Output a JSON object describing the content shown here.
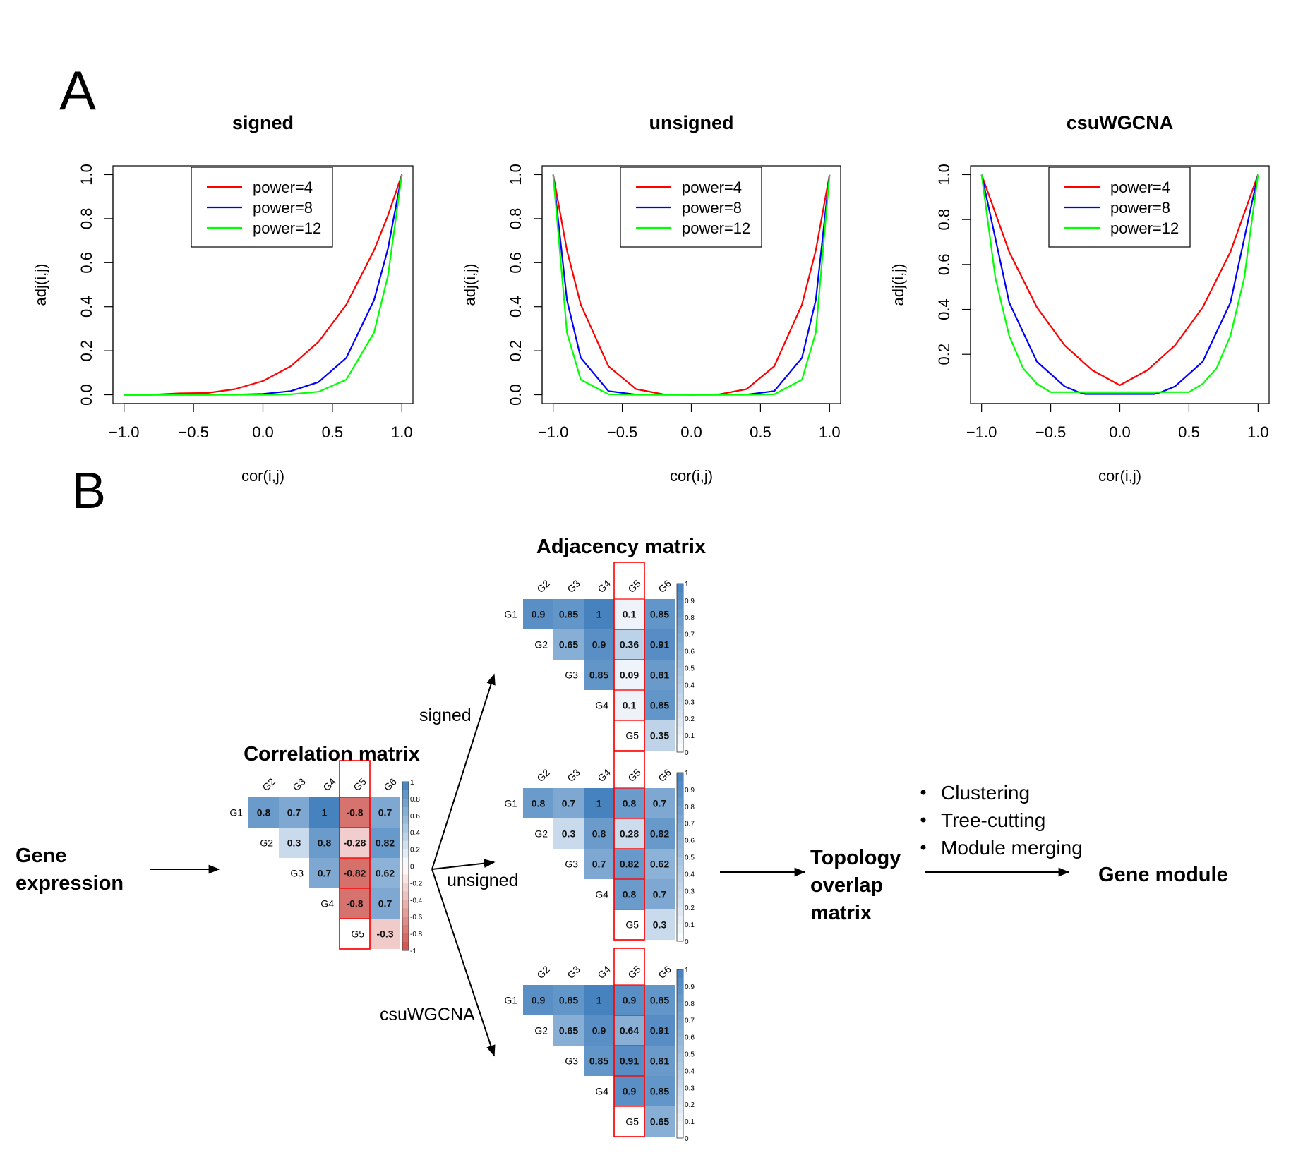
{
  "panel_labels": {
    "a": "A",
    "b": "B"
  },
  "colors": {
    "power4": "#ff0000",
    "power8": "#0000ff",
    "power12": "#00ff00",
    "positive": "#2166ac",
    "negative": "#b2182b",
    "highlight": "#ff0000"
  },
  "chart_data": [
    {
      "type": "line",
      "title": "signed",
      "xlabel": "cor(i,j)",
      "ylabel": "adj(i,j)",
      "xlim": [
        -1.0,
        1.0
      ],
      "ylim": [
        0.0,
        1.0
      ],
      "xticks": [
        "-1.0",
        "-0.5",
        "0.0",
        "0.5",
        "1.0"
      ],
      "yticks": [
        "0.0",
        "0.2",
        "0.4",
        "0.6",
        "0.8",
        "1.0"
      ],
      "grid": false,
      "legend_position": "top-center",
      "series": [
        {
          "name": "power=4",
          "x": [
            -1.0,
            -0.8,
            -0.6,
            -0.4,
            -0.2,
            0.0,
            0.2,
            0.4,
            0.6,
            0.8,
            0.9,
            1.0
          ],
          "y": [
            0.0,
            0.0002,
            0.0066,
            0.0081,
            0.0256,
            0.0625,
            0.1296,
            0.2401,
            0.4096,
            0.6561,
            0.8145,
            1.0
          ]
        },
        {
          "name": "power=8",
          "x": [
            -1.0,
            -0.8,
            -0.6,
            -0.4,
            -0.2,
            0.0,
            0.2,
            0.4,
            0.6,
            0.8,
            0.9,
            1.0
          ],
          "y": [
            0.0,
            0.0,
            0.0,
            0.0001,
            0.0007,
            0.0039,
            0.0168,
            0.0576,
            0.1678,
            0.4305,
            0.6634,
            1.0
          ]
        },
        {
          "name": "power=12",
          "x": [
            -1.0,
            -0.8,
            -0.6,
            -0.4,
            -0.2,
            0.0,
            0.2,
            0.4,
            0.6,
            0.8,
            0.9,
            1.0
          ],
          "y": [
            0.0,
            0.0,
            0.0,
            0.0,
            0.0,
            0.0002,
            0.0022,
            0.0138,
            0.0687,
            0.2824,
            0.5404,
            1.0
          ]
        }
      ]
    },
    {
      "type": "line",
      "title": "unsigned",
      "xlabel": "cor(i,j)",
      "ylabel": "adj(i,j)",
      "xlim": [
        -1.0,
        1.0
      ],
      "ylim": [
        0.0,
        1.0
      ],
      "xticks": [
        "-1.0",
        "-0.5",
        "0.0",
        "0.5",
        "1.0"
      ],
      "yticks": [
        "0.0",
        "0.2",
        "0.4",
        "0.6",
        "0.8",
        "1.0"
      ],
      "grid": false,
      "legend_position": "top-center",
      "series": [
        {
          "name": "power=4",
          "x": [
            -1.0,
            -0.9,
            -0.8,
            -0.6,
            -0.4,
            -0.2,
            0.0,
            0.2,
            0.4,
            0.6,
            0.8,
            0.9,
            1.0
          ],
          "y": [
            1.0,
            0.6561,
            0.4096,
            0.1296,
            0.0256,
            0.0016,
            0.0,
            0.0016,
            0.0256,
            0.1296,
            0.4096,
            0.6561,
            1.0
          ]
        },
        {
          "name": "power=8",
          "x": [
            -1.0,
            -0.9,
            -0.8,
            -0.6,
            -0.4,
            -0.2,
            0.0,
            0.2,
            0.4,
            0.6,
            0.8,
            0.9,
            1.0
          ],
          "y": [
            1.0,
            0.4305,
            0.1678,
            0.0168,
            0.0007,
            0.0,
            0.0,
            0.0,
            0.0007,
            0.0168,
            0.1678,
            0.4305,
            1.0
          ]
        },
        {
          "name": "power=12",
          "x": [
            -1.0,
            -0.9,
            -0.8,
            -0.6,
            -0.4,
            -0.2,
            0.0,
            0.2,
            0.4,
            0.6,
            0.8,
            0.9,
            1.0
          ],
          "y": [
            1.0,
            0.2824,
            0.0687,
            0.0022,
            0.0,
            0.0,
            0.0,
            0.0,
            0.0,
            0.0022,
            0.0687,
            0.2824,
            1.0
          ]
        }
      ]
    },
    {
      "type": "line",
      "title": "csuWGCNA",
      "xlabel": "cor(i,j)",
      "ylabel": "adj(i,j)",
      "xlim": [
        -1.0,
        1.0
      ],
      "ylim": [
        0.02,
        1.0
      ],
      "xticks": [
        "-1.0",
        "-0.5",
        "0.0",
        "0.5",
        "1.0"
      ],
      "yticks": [
        "0.2",
        "0.4",
        "0.6",
        "0.8",
        "1.0"
      ],
      "grid": false,
      "legend_position": "top-center",
      "series": [
        {
          "name": "power=4",
          "x": [
            -1.0,
            -0.8,
            -0.6,
            -0.4,
            -0.2,
            0.0,
            0.2,
            0.4,
            0.6,
            0.8,
            1.0
          ],
          "y": [
            1.0,
            0.6561,
            0.4096,
            0.2401,
            0.1296,
            0.0625,
            0.1296,
            0.2401,
            0.4096,
            0.6561,
            1.0
          ]
        },
        {
          "name": "power=8",
          "x": [
            -1.0,
            -0.8,
            -0.6,
            -0.4,
            -0.3,
            -0.25,
            0.25,
            0.3,
            0.4,
            0.6,
            0.8,
            1.0
          ],
          "y": [
            1.0,
            0.4305,
            0.1678,
            0.0576,
            0.0319,
            0.0232,
            0.0232,
            0.0319,
            0.0576,
            0.1678,
            0.4305,
            1.0
          ]
        },
        {
          "name": "power=12",
          "x": [
            -1.0,
            -0.9,
            -0.8,
            -0.7,
            -0.6,
            -0.5,
            0.5,
            0.6,
            0.7,
            0.8,
            0.9,
            1.0
          ],
          "y": [
            1.0,
            0.5404,
            0.2824,
            0.1384,
            0.0687,
            0.0317,
            0.0317,
            0.0687,
            0.1384,
            0.2824,
            0.5404,
            1.0
          ]
        }
      ]
    },
    {
      "type": "heatmap",
      "title": "Correlation matrix",
      "rows": [
        "G1",
        "G2",
        "G3",
        "G4",
        "G5"
      ],
      "cols": [
        "G2",
        "G3",
        "G4",
        "G5",
        "G6"
      ],
      "values": [
        [
          0.8,
          0.7,
          1,
          -0.8,
          0.7
        ],
        [
          null,
          0.3,
          0.8,
          -0.28,
          0.82
        ],
        [
          null,
          null,
          0.7,
          -0.82,
          0.62
        ],
        [
          null,
          null,
          null,
          -0.8,
          0.7
        ],
        [
          null,
          null,
          null,
          null,
          -0.3
        ]
      ],
      "labels": [
        [
          "0.8",
          "0.7",
          "1",
          "-0.8",
          "0.7"
        ],
        [
          "",
          "0.3",
          "0.8",
          "-0.28",
          "0.82"
        ],
        [
          "",
          "",
          "0.7",
          "-0.82",
          "0.62"
        ],
        [
          "",
          "",
          "",
          "-0.8",
          "0.7"
        ],
        [
          "",
          "",
          "",
          "",
          "-0.3"
        ]
      ],
      "colorbar_ticks": [
        "1",
        "0.8",
        "0.6",
        "0.4",
        "0.2",
        "0",
        "-0.2",
        "-0.4",
        "-0.6",
        "-0.8",
        "-1"
      ],
      "scale_range": [
        -1,
        1
      ],
      "highlighted_column": "G5"
    },
    {
      "type": "heatmap",
      "title": "Adjacency matrix",
      "method": "signed",
      "rows": [
        "G1",
        "G2",
        "G3",
        "G4",
        "G5"
      ],
      "cols": [
        "G2",
        "G3",
        "G4",
        "G5",
        "G6"
      ],
      "values": [
        [
          0.9,
          0.85,
          1,
          0.1,
          0.85
        ],
        [
          null,
          0.65,
          0.9,
          0.36,
          0.91
        ],
        [
          null,
          null,
          0.85,
          0.09,
          0.81
        ],
        [
          null,
          null,
          null,
          0.1,
          0.85
        ],
        [
          null,
          null,
          null,
          null,
          0.35
        ]
      ],
      "labels": [
        [
          "0.9",
          "0.85",
          "1",
          "0.1",
          "0.85"
        ],
        [
          "",
          "0.65",
          "0.9",
          "0.36",
          "0.91"
        ],
        [
          "",
          "",
          "0.85",
          "0.09",
          "0.81"
        ],
        [
          "",
          "",
          "",
          "0.1",
          "0.85"
        ],
        [
          "",
          "",
          "",
          "",
          "0.35"
        ]
      ],
      "colorbar_ticks": [
        "1",
        "0.9",
        "0.8",
        "0.7",
        "0.6",
        "0.5",
        "0.4",
        "0.3",
        "0.2",
        "0.1",
        "0"
      ],
      "scale_range": [
        0,
        1
      ],
      "highlighted_column": "G5"
    },
    {
      "type": "heatmap",
      "title": "",
      "method": "unsigned",
      "rows": [
        "G1",
        "G2",
        "G3",
        "G4",
        "G5"
      ],
      "cols": [
        "G2",
        "G3",
        "G4",
        "G5",
        "G6"
      ],
      "values": [
        [
          0.8,
          0.7,
          1,
          0.8,
          0.7
        ],
        [
          null,
          0.3,
          0.8,
          0.28,
          0.82
        ],
        [
          null,
          null,
          0.7,
          0.82,
          0.62
        ],
        [
          null,
          null,
          null,
          0.8,
          0.7
        ],
        [
          null,
          null,
          null,
          null,
          0.3
        ]
      ],
      "labels": [
        [
          "0.8",
          "0.7",
          "1",
          "0.8",
          "0.7"
        ],
        [
          "",
          "0.3",
          "0.8",
          "0.28",
          "0.82"
        ],
        [
          "",
          "",
          "0.7",
          "0.82",
          "0.62"
        ],
        [
          "",
          "",
          "",
          "0.8",
          "0.7"
        ],
        [
          "",
          "",
          "",
          "",
          "0.3"
        ]
      ],
      "colorbar_ticks": [
        "1",
        "0.9",
        "0.8",
        "0.7",
        "0.6",
        "0.5",
        "0.4",
        "0.3",
        "0.2",
        "0.1",
        "0"
      ],
      "scale_range": [
        0,
        1
      ],
      "highlighted_column": "G5"
    },
    {
      "type": "heatmap",
      "title": "",
      "method": "csuWGCNA",
      "rows": [
        "G1",
        "G2",
        "G3",
        "G4",
        "G5"
      ],
      "cols": [
        "G2",
        "G3",
        "G4",
        "G5",
        "G6"
      ],
      "values": [
        [
          0.9,
          0.85,
          1,
          0.9,
          0.85
        ],
        [
          null,
          0.65,
          0.9,
          0.64,
          0.91
        ],
        [
          null,
          null,
          0.85,
          0.91,
          0.81
        ],
        [
          null,
          null,
          null,
          0.9,
          0.85
        ],
        [
          null,
          null,
          null,
          null,
          0.65
        ]
      ],
      "labels": [
        [
          "0.9",
          "0.85",
          "1",
          "0.9",
          "0.85"
        ],
        [
          "",
          "0.65",
          "0.9",
          "0.64",
          "0.91"
        ],
        [
          "",
          "",
          "0.85",
          "0.91",
          "0.81"
        ],
        [
          "",
          "",
          "",
          "0.9",
          "0.85"
        ],
        [
          "",
          "",
          "",
          "",
          "0.65"
        ]
      ],
      "colorbar_ticks": [
        "1",
        "0.9",
        "0.8",
        "0.7",
        "0.6",
        "0.5",
        "0.4",
        "0.3",
        "0.2",
        "0.1",
        "0"
      ],
      "scale_range": [
        0,
        1
      ],
      "highlighted_column": "G5"
    }
  ],
  "flow": {
    "gene_expression": [
      "Gene",
      "expression"
    ],
    "method_labels": [
      "signed",
      "unsigned",
      "csuWGCNA"
    ],
    "tom": [
      "Topology",
      "overlap",
      "matrix"
    ],
    "steps": [
      "Clustering",
      "Tree-cutting",
      "Module merging"
    ],
    "gene_module": "Gene module"
  }
}
